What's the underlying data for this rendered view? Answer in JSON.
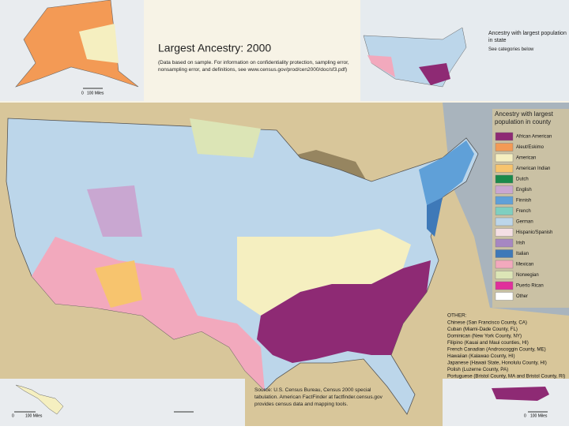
{
  "title": "Largest Ancestry: 2000",
  "note": "(Data based on sample. For information on confidentiality protection, sampling error, nonsampling error, and definitions, see www.census.gov/prod/cen2000/doc/sf3.pdf)",
  "state_inset": {
    "title": "Ancestry with largest population in state",
    "subtitle": "See categories below"
  },
  "county_legend": {
    "title": "Ancestry with largest population in county",
    "items": [
      {
        "label": "African American",
        "color": "#8e2a74"
      },
      {
        "label": "Aleut/Eskimo",
        "color": "#f39a55"
      },
      {
        "label": "American",
        "color": "#f5efc0"
      },
      {
        "label": "American Indian",
        "color": "#f7c46e"
      },
      {
        "label": "Dutch",
        "color": "#1a8a4a"
      },
      {
        "label": "English",
        "color": "#c9a7d1"
      },
      {
        "label": "Finnish",
        "color": "#5fa0d8"
      },
      {
        "label": "French",
        "color": "#7fcfc0"
      },
      {
        "label": "German",
        "color": "#bcd6ea"
      },
      {
        "label": "Hispanic/Spanish",
        "color": "#f4dfe4"
      },
      {
        "label": "Irish",
        "color": "#a687c2"
      },
      {
        "label": "Italian",
        "color": "#3e79b8"
      },
      {
        "label": "Mexican",
        "color": "#f2a9bd"
      },
      {
        "label": "Norwegian",
        "color": "#dce5b6"
      },
      {
        "label": "Puerto Rican",
        "color": "#e0309b"
      },
      {
        "label": "Other",
        "color": "#ffffff"
      }
    ]
  },
  "other": {
    "title": "OTHER:",
    "items": [
      "Chinese (San Francisco County, CA)",
      "Cuban (Miami-Dade County, FL)",
      "Dominican (New York County, NY)",
      "Filipino (Kauai and Maui counties, HI)",
      "French Canadian (Androscoggin County, ME)",
      "Hawaiian (Kalawao County, HI)",
      "Japanese (Hawaii State, Honolulu County, HI)",
      "Polish (Luzerne County, PA)",
      "Portuguese (Bristol County, MA and Bristol County, RI)"
    ]
  },
  "source": "Source: U.S. Census Bureau, Census 2000 special tabulation. American FactFinder at factfinder.census.gov provides census data and mapping tools.",
  "scales": {
    "alaska": [
      "0",
      "100 Miles"
    ],
    "hawaii": [
      "0",
      "100 Miles"
    ],
    "puerto_rico": [
      "0",
      "100 Miles"
    ]
  }
}
